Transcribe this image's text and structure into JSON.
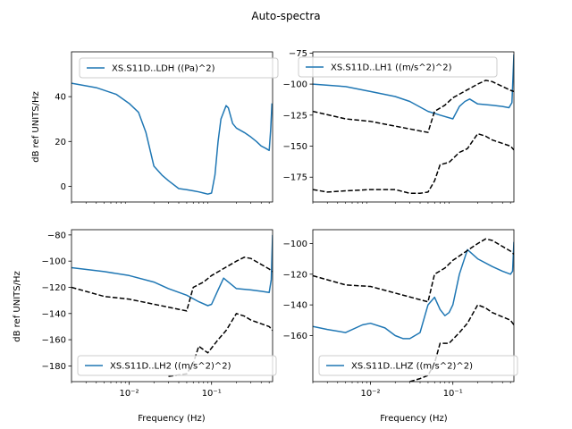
{
  "figure": {
    "title": "Auto-spectra",
    "xlabel": "Frequency (Hz)",
    "ylabel": "dB ref UNITS/Hz"
  },
  "colors": {
    "spectrum": "#1f77b4",
    "noise_model": "#000000",
    "legend_border": "#cccccc"
  },
  "chart_data": [
    {
      "type": "line",
      "position": "top-left",
      "xscale": "log",
      "xlim": [
        0.002,
        0.55
      ],
      "ylim": [
        -7,
        60
      ],
      "xticks": [],
      "yticks": [
        0,
        20,
        40
      ],
      "legend_placement": "top-left",
      "series": [
        {
          "name": "XS.S11D..LDH ((Pa)^2)",
          "style": "solid",
          "x": [
            0.002,
            0.004,
            0.007,
            0.01,
            0.013,
            0.016,
            0.02,
            0.025,
            0.03,
            0.04,
            0.05,
            0.06,
            0.07,
            0.08,
            0.09,
            0.1,
            0.11,
            0.12,
            0.13,
            0.15,
            0.16,
            0.18,
            0.2,
            0.25,
            0.3,
            0.35,
            0.4,
            0.45,
            0.5,
            0.52,
            0.54
          ],
          "y": [
            46,
            44,
            41,
            37,
            33,
            24,
            9,
            5,
            2.5,
            -1,
            -1.5,
            -2,
            -2.5,
            -3,
            -3.5,
            -3,
            5,
            20,
            30,
            36,
            35,
            28,
            26,
            24,
            22,
            20,
            18,
            17,
            16,
            25,
            37
          ]
        }
      ]
    },
    {
      "type": "line",
      "position": "top-right",
      "xscale": "log",
      "xlim": [
        0.002,
        0.55
      ],
      "ylim": [
        -195,
        -74
      ],
      "xticks": [],
      "yticks": [
        -175,
        -150,
        -125,
        -100,
        -75
      ],
      "legend_placement": "top-center",
      "series": [
        {
          "name": "XS.S11D..LH1 ((m/s^2)^2)",
          "style": "solid",
          "x": [
            0.002,
            0.005,
            0.01,
            0.02,
            0.03,
            0.05,
            0.07,
            0.1,
            0.12,
            0.14,
            0.16,
            0.2,
            0.3,
            0.4,
            0.48,
            0.52,
            0.55
          ],
          "y": [
            -100,
            -102,
            -106,
            -110,
            -114,
            -122,
            -125,
            -128,
            -118,
            -114,
            -112,
            -116,
            -117,
            -118,
            -119,
            -115,
            -76
          ]
        },
        {
          "name": "",
          "style": "dashed",
          "x": [
            0.002,
            0.005,
            0.01,
            0.05,
            0.06,
            0.08,
            0.1,
            0.2,
            0.25,
            0.3,
            0.5,
            0.55
          ],
          "y": [
            -122,
            -128,
            -130,
            -139,
            -122,
            -117,
            -111,
            -100,
            -97,
            -98,
            -105,
            -106
          ]
        },
        {
          "name": "",
          "style": "dashed",
          "x": [
            0.002,
            0.003,
            0.005,
            0.01,
            0.02,
            0.03,
            0.04,
            0.05,
            0.06,
            0.07,
            0.09,
            0.12,
            0.15,
            0.2,
            0.25,
            0.3,
            0.5,
            0.55
          ],
          "y": [
            -185,
            -187,
            -186,
            -185,
            -185,
            -188,
            -188,
            -187,
            -178,
            -165,
            -163,
            -155,
            -152,
            -140,
            -142,
            -145,
            -150,
            -153
          ]
        }
      ]
    },
    {
      "type": "line",
      "position": "bottom-left",
      "xscale": "log",
      "xlim": [
        0.002,
        0.55
      ],
      "ylim": [
        -192,
        -76
      ],
      "xticks": [
        0.01,
        0.1
      ],
      "xtick_labels": [
        "10⁻²",
        "10⁻¹"
      ],
      "yticks": [
        -180,
        -160,
        -140,
        -120,
        -100,
        -80
      ],
      "legend_placement": "bottom-center",
      "series": [
        {
          "name": "XS.S11D..LH2 ((m/s^2)^2)",
          "style": "solid",
          "x": [
            0.002,
            0.005,
            0.01,
            0.02,
            0.03,
            0.05,
            0.07,
            0.09,
            0.1,
            0.12,
            0.14,
            0.16,
            0.2,
            0.3,
            0.4,
            0.5,
            0.53,
            0.55
          ],
          "y": [
            -105,
            -108,
            -111,
            -116,
            -121,
            -126,
            -131,
            -134,
            -133,
            -122,
            -113,
            -116,
            -121,
            -122,
            -123,
            -124,
            -114,
            -80
          ]
        },
        {
          "name": "",
          "style": "dashed",
          "x": [
            0.002,
            0.005,
            0.01,
            0.05,
            0.06,
            0.08,
            0.1,
            0.2,
            0.25,
            0.3,
            0.5,
            0.55
          ],
          "y": [
            -120,
            -127,
            -129,
            -138,
            -120,
            -116,
            -111,
            -100,
            -97,
            -98,
            -106,
            -108
          ]
        },
        {
          "name": "",
          "style": "dashed",
          "x": [
            0.03,
            0.05,
            0.06,
            0.07,
            0.09,
            0.12,
            0.15,
            0.2,
            0.25,
            0.3,
            0.5,
            0.55
          ],
          "y": [
            -188,
            -186,
            -178,
            -165,
            -170,
            -160,
            -153,
            -140,
            -142,
            -145,
            -150,
            -153
          ]
        }
      ]
    },
    {
      "type": "line",
      "position": "bottom-right",
      "xscale": "log",
      "xlim": [
        0.002,
        0.55
      ],
      "ylim": [
        -190,
        -91
      ],
      "xticks": [
        0.01,
        0.1
      ],
      "xtick_labels": [
        "10⁻²",
        "10⁻¹"
      ],
      "yticks": [
        -160,
        -140,
        -120,
        -100
      ],
      "legend_placement": "bottom-center",
      "series": [
        {
          "name": "XS.S11D..LHZ ((m/s^2)^2)",
          "style": "solid",
          "x": [
            0.002,
            0.003,
            0.005,
            0.008,
            0.01,
            0.015,
            0.02,
            0.025,
            0.03,
            0.04,
            0.05,
            0.06,
            0.07,
            0.08,
            0.09,
            0.1,
            0.12,
            0.15,
            0.2,
            0.3,
            0.4,
            0.5,
            0.53,
            0.55
          ],
          "y": [
            -154,
            -156,
            -158,
            -153,
            -152,
            -155,
            -160,
            -162,
            -162,
            -158,
            -140,
            -135,
            -143,
            -147,
            -145,
            -140,
            -120,
            -104,
            -110,
            -115,
            -118,
            -120,
            -118,
            -99
          ]
        },
        {
          "name": "",
          "style": "dashed",
          "x": [
            0.002,
            0.005,
            0.01,
            0.05,
            0.06,
            0.08,
            0.1,
            0.2,
            0.25,
            0.3,
            0.5,
            0.55
          ],
          "y": [
            -121,
            -127,
            -128,
            -138,
            -120,
            -116,
            -111,
            -100,
            -97,
            -98,
            -105,
            -107
          ]
        },
        {
          "name": "",
          "style": "dashed",
          "x": [
            0.03,
            0.04,
            0.05,
            0.06,
            0.07,
            0.09,
            0.12,
            0.15,
            0.2,
            0.25,
            0.3,
            0.5,
            0.55
          ],
          "y": [
            -190,
            -188,
            -186,
            -178,
            -165,
            -165,
            -158,
            -152,
            -140,
            -142,
            -145,
            -150,
            -153
          ]
        }
      ]
    }
  ]
}
